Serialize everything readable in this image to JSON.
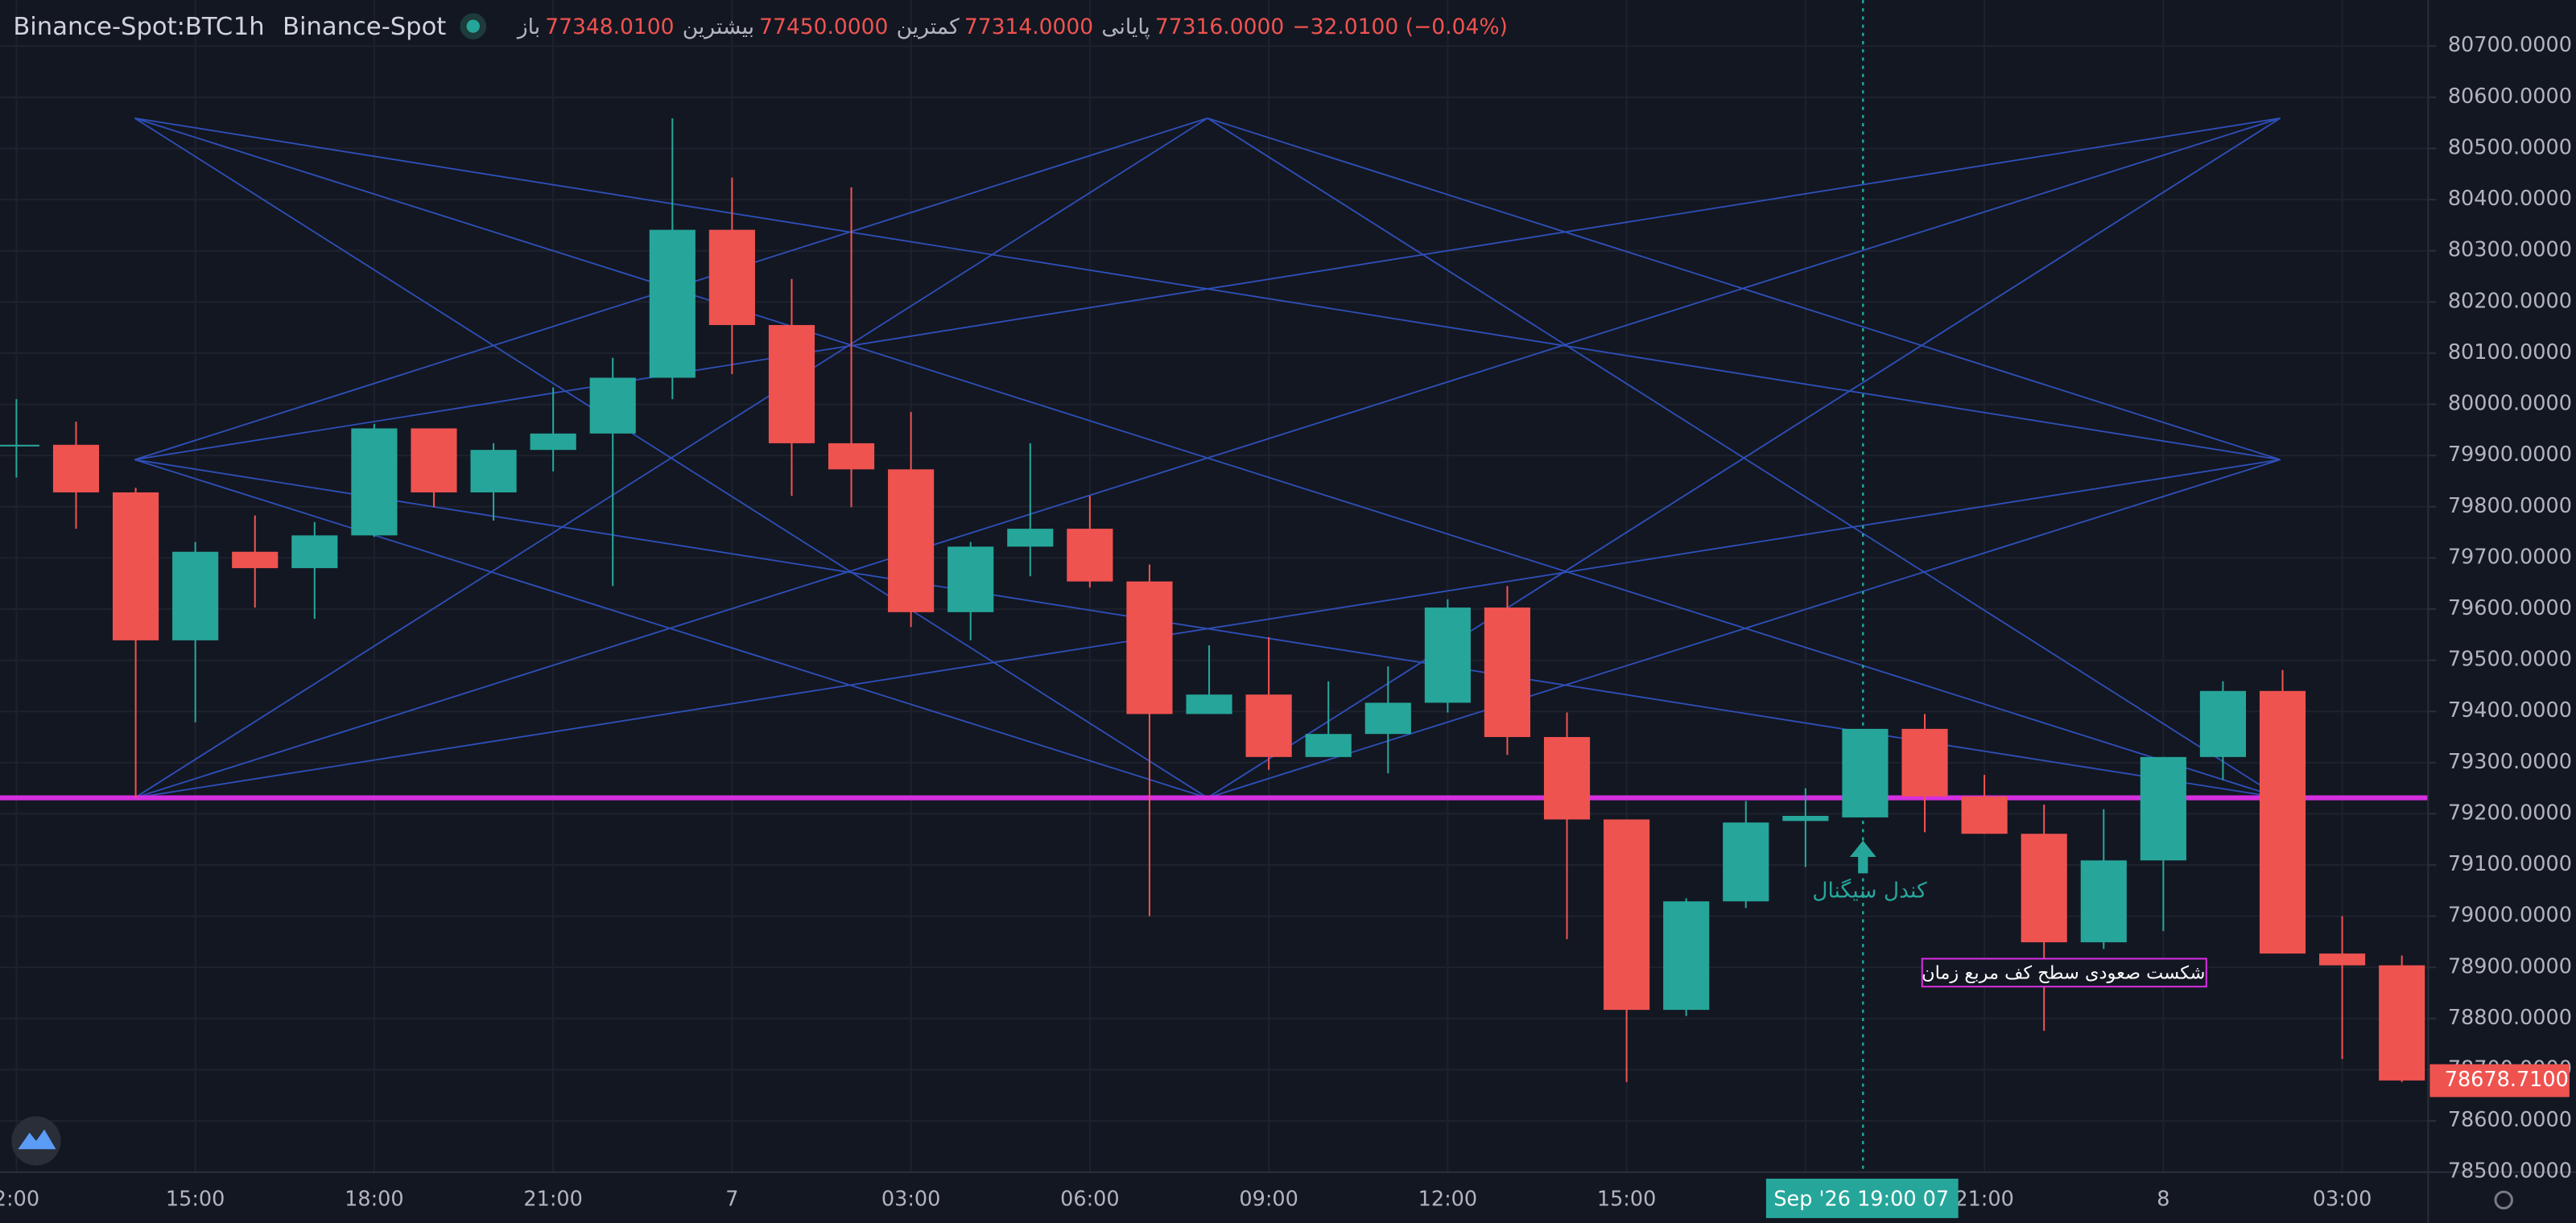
{
  "chart_data": {
    "type": "candlestick",
    "symbol": "Binance-Spot:BTC",
    "interval": "1h",
    "exchange": "Binance-Spot",
    "legend": [
      {
        "label": "باز",
        "value": "77348.0100"
      },
      {
        "label": "بیشترین",
        "value": "77450.0000"
      },
      {
        "label": "کمترین",
        "value": "77314.0000"
      },
      {
        "label": "پایانی",
        "value": "77316.0000"
      }
    ],
    "change": "−32.0100 (−0.04%)",
    "categories": [
      "2:00",
      null,
      null,
      "15:00",
      null,
      null,
      "18:00",
      null,
      null,
      "21:00",
      null,
      null,
      "7",
      null,
      null,
      "03:00",
      null,
      null,
      "06:00",
      null,
      null,
      "09:00",
      null,
      null,
      "12:00",
      null,
      null,
      "15:00",
      null,
      null,
      null,
      null,
      null,
      "21:00",
      null,
      null,
      "8",
      null,
      null,
      "03:00",
      null
    ],
    "open": [
      79920,
      79921,
      79828,
      79539,
      79712,
      79680,
      79744,
      79953,
      79828,
      79911,
      79943,
      80052,
      80341,
      80155,
      79924,
      79873,
      79594,
      79722,
      79757,
      79654,
      79395,
      79433,
      79311,
      79356,
      79417,
      79603,
      79350,
      79189,
      78817,
      79029,
      79186,
      79193,
      79366,
      79234,
      79161,
      78949,
      79109,
      79311,
      79440,
      78927,
      78904
    ],
    "high": [
      80010,
      79966,
      79837,
      79731,
      79783,
      79770,
      79962,
      79953,
      79924,
      80033,
      80091,
      80559,
      80443,
      80245,
      80424,
      79985,
      79731,
      79924,
      79821,
      79687,
      79529,
      79545,
      79459,
      79488,
      79619,
      79645,
      79398,
      79189,
      79035,
      79225,
      79250,
      79366,
      79395,
      79276,
      79218,
      79209,
      79311,
      79459,
      79481,
      79000,
      78923
    ],
    "low": [
      79857,
      79757,
      79231,
      79379,
      79603,
      79581,
      79741,
      79799,
      79773,
      79869,
      79645,
      80010,
      80059,
      79821,
      79799,
      79565,
      79539,
      79664,
      79642,
      79000,
      79395,
      79286,
      79311,
      79279,
      79398,
      79315,
      78955,
      78676,
      78805,
      79016,
      79096,
      79193,
      79164,
      79161,
      78776,
      78936,
      78971,
      79266,
      78927,
      78721,
      78676
    ],
    "close": [
      79921,
      79828,
      79539,
      79712,
      79680,
      79744,
      79953,
      79828,
      79911,
      79943,
      80052,
      80341,
      80155,
      79924,
      79873,
      79594,
      79722,
      79757,
      79654,
      79395,
      79433,
      79311,
      79356,
      79417,
      79603,
      79350,
      79189,
      78817,
      79029,
      79183,
      79196,
      79366,
      79234,
      79161,
      78949,
      79109,
      79311,
      79440,
      78927,
      78904,
      78679
    ],
    "up_color": "#26a69a",
    "down_color": "#ef5350",
    "ylim": [
      78500,
      80790
    ],
    "yticks": [
      {
        "value": 78500,
        "label": "78500.0000"
      },
      {
        "value": 78600,
        "label": "78600.0000"
      },
      {
        "value": 78700,
        "label": "78700.0000"
      },
      {
        "value": 78800,
        "label": "78800.0000"
      },
      {
        "value": 78900,
        "label": "78900.0000"
      },
      {
        "value": 79000,
        "label": "79000.0000"
      },
      {
        "value": 79100,
        "label": "79100.0000"
      },
      {
        "value": 79200,
        "label": "79200.0000"
      },
      {
        "value": 79300,
        "label": "79300.0000"
      },
      {
        "value": 79400,
        "label": "79400.0000"
      },
      {
        "value": 79500,
        "label": "79500.0000"
      },
      {
        "value": 79600,
        "label": "79600.0000"
      },
      {
        "value": 79700,
        "label": "79700.0000"
      },
      {
        "value": 79800,
        "label": "79800.0000"
      },
      {
        "value": 79900,
        "label": "79900.0000"
      },
      {
        "value": 80000,
        "label": "80000.0000"
      },
      {
        "value": 80100,
        "label": "80100.0000"
      },
      {
        "value": 80200,
        "label": "80200.0000"
      },
      {
        "value": 80300,
        "label": "80300.0000"
      },
      {
        "value": 80400,
        "label": "80400.0000"
      },
      {
        "value": 80500,
        "label": "80500.0000"
      },
      {
        "value": 80600,
        "label": "80600.0000"
      },
      {
        "value": 80700,
        "label": "80700.0000"
      }
    ],
    "last_price": {
      "value": 78678.71,
      "label": "78678.7100"
    },
    "crosshair_label": "Sep '26   19:00 07",
    "annotations": [
      "کندل سیگنال",
      "شکست صعودی سطح کف مربع زمان"
    ],
    "grid": true
  }
}
